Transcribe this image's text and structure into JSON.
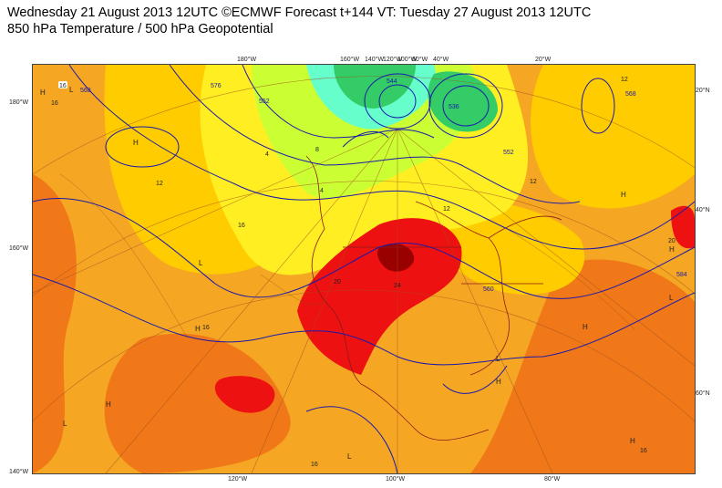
{
  "title": {
    "line1": "Wednesday 21 August 2013 12UTC ©ECMWF Forecast t+144 VT: Tuesday 27 August 2013 12UTC",
    "line2": "850 hPa Temperature / 500 hPa Geopotential"
  },
  "axis_labels": {
    "top": [
      "180°W",
      "160°W",
      "140°W",
      "120°W",
      "100°W",
      "60°W",
      "40°W",
      "20°W"
    ],
    "bottom": [
      "120°W",
      "100°W",
      "80°W"
    ],
    "left": [
      "180°W",
      "160°W",
      "140°W"
    ],
    "right": [
      "20°N",
      "40°N",
      "60°N"
    ]
  },
  "contour_labels": {
    "geopotential": [
      "568",
      "576",
      "552",
      "544",
      "536",
      "560",
      "584",
      "552",
      "568"
    ],
    "temperature": [
      "16",
      "12",
      "12",
      "16",
      "20",
      "24",
      "16",
      "16",
      "20",
      "16",
      "12",
      "8",
      "4",
      "4",
      "12",
      "16"
    ]
  },
  "pressure_markers": {
    "high": "H",
    "low": "L"
  },
  "colors": {
    "cold_green": "#33cc66",
    "cool_cyan": "#66ffcc",
    "mild_yellowgreen": "#ccff33",
    "warm_yellow": "#ffee22",
    "warm_lightorange": "#ffcc00",
    "hot_orange": "#f5a623",
    "hotter_orange": "#f07818",
    "very_hot_red": "#ee1111",
    "extreme_darkred": "#990000",
    "geopotential_line": "#1a1aaa",
    "border_line": "#8b1a1a"
  }
}
